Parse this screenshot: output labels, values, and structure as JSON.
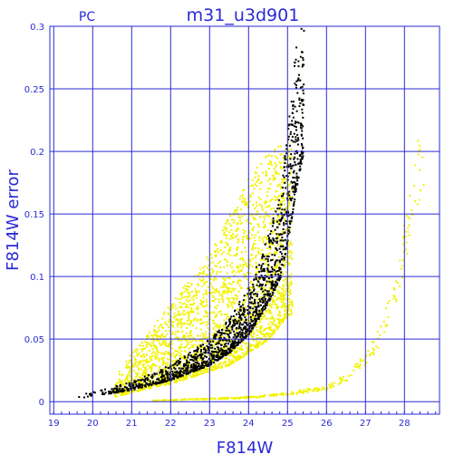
{
  "chart_data": {
    "type": "scatter",
    "title": "m31_u3d901",
    "corner_label": "PC",
    "xlabel": "F814W",
    "ylabel": "F814W error",
    "xlim": [
      18.9,
      28.9
    ],
    "ylim": [
      -0.01,
      0.3
    ],
    "x_ticks": [
      19,
      20,
      21,
      22,
      23,
      24,
      25,
      26,
      27,
      28
    ],
    "y_ticks": [
      0,
      0.05,
      0.1,
      0.15,
      0.2,
      0.25,
      0.3
    ],
    "y_tick_labels": [
      "0",
      "0.05",
      "0.1",
      "0.15",
      "0.2",
      "0.25",
      "0.3"
    ],
    "grid": true,
    "colors": {
      "axes": "#2a2ad6",
      "series_black": "#000000",
      "series_yellow": "#f2f200"
    },
    "series": [
      {
        "color": "yellow",
        "envelope": {
          "x": [
            20.5,
            21.0,
            21.5,
            22.0,
            22.5,
            23.0,
            23.5,
            24.0,
            24.5,
            25.0
          ],
          "y_min": [
            0.004,
            0.008,
            0.012,
            0.015,
            0.02,
            0.025,
            0.03,
            0.04,
            0.05,
            0.07
          ],
          "y_max": [
            0.02,
            0.04,
            0.06,
            0.08,
            0.1,
            0.12,
            0.15,
            0.18,
            0.2,
            0.21
          ]
        },
        "sequence": {
          "x": [
            21.5,
            22.0,
            23.0,
            24.0,
            25.0,
            26.0,
            26.5,
            27.0,
            27.3,
            27.8,
            28.0,
            28.3,
            28.5
          ],
          "y": [
            0.0015,
            0.002,
            0.003,
            0.004,
            0.007,
            0.012,
            0.02,
            0.035,
            0.05,
            0.09,
            0.13,
            0.18,
            0.205
          ]
        }
      },
      {
        "color": "black",
        "ridge": {
          "x": [
            19.5,
            20.0,
            21.0,
            22.0,
            23.0,
            23.5,
            24.0,
            24.5,
            24.8,
            25.0,
            25.2,
            25.4
          ],
          "y": [
            0.003,
            0.005,
            0.01,
            0.018,
            0.03,
            0.04,
            0.055,
            0.08,
            0.1,
            0.13,
            0.17,
            0.2
          ]
        }
      }
    ]
  }
}
